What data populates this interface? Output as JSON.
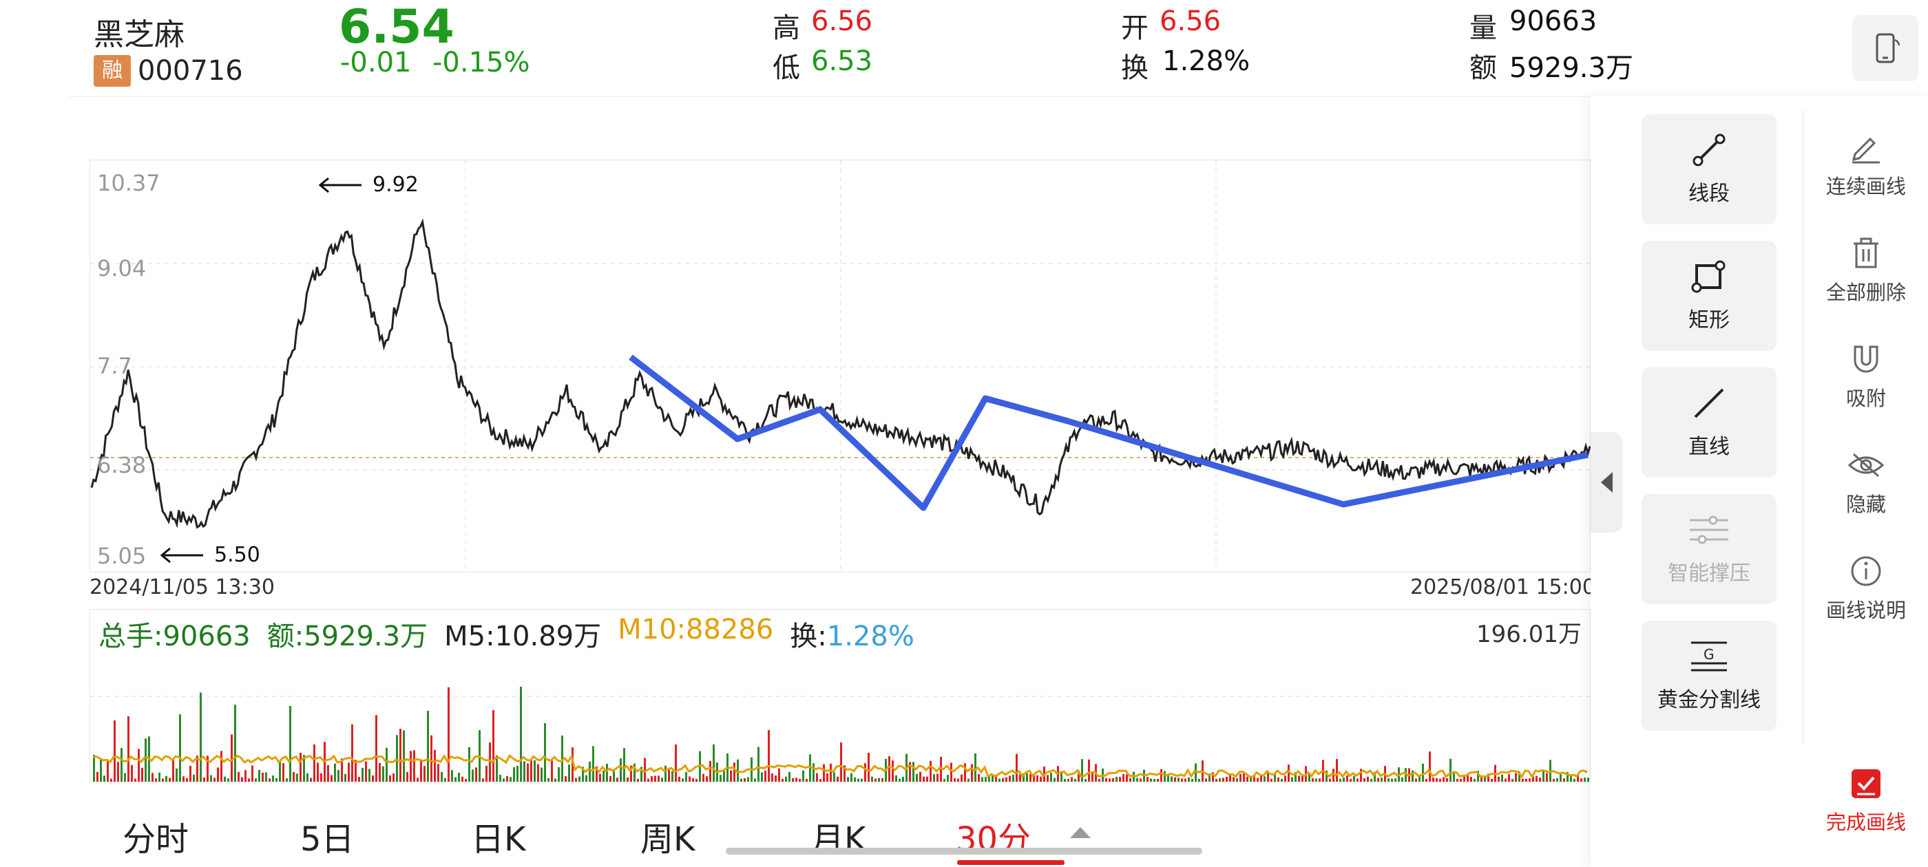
{
  "stock": {
    "name": "黑芝麻",
    "badge": "融",
    "code": "000716",
    "price": "6.54",
    "change": "-0.01",
    "change_pct": "-0.15%"
  },
  "quote": {
    "high_label": "高",
    "high": "6.56",
    "low_label": "低",
    "low": "6.53",
    "open_label": "开",
    "open": "6.56",
    "turnover_label": "换",
    "turnover": "1.28%",
    "volume_label": "量",
    "volume": "90663",
    "amount_label": "额",
    "amount": "5929.3万"
  },
  "chart": {
    "y_labels": [
      "10.37",
      "9.04",
      "7.7",
      "6.38",
      "5.05"
    ],
    "max_annotation": "9.92",
    "min_annotation": "5.50",
    "start_date": "2024/11/05 13:30",
    "end_date": "2025/08/01 15:00"
  },
  "volume_legend": {
    "total": "总手:90663",
    "amount": "额:5929.3万",
    "m5": "M5:10.89万",
    "m10": "M10:88286",
    "turn_label": "换:",
    "turn": "1.28%",
    "max_label": "196.01万"
  },
  "tabs": [
    {
      "label": "分时"
    },
    {
      "label": "5日"
    },
    {
      "label": "日K"
    },
    {
      "label": "周K"
    },
    {
      "label": "月K"
    },
    {
      "label": "30分"
    }
  ],
  "tools": {
    "segment": "线段",
    "rectangle": "矩形",
    "line": "直线",
    "smart": "智能撑压",
    "golden": "黄金分割线"
  },
  "side_actions": {
    "continuous": "连续画线",
    "delete_all": "全部删除",
    "snap": "吸附",
    "hide": "隐藏",
    "help": "画线说明",
    "done": "完成画线"
  },
  "colors": {
    "up": "#e02020",
    "down": "#1f9a1f",
    "drawn_line": "#3b5fe0",
    "ma10": "#e0a000",
    "turn": "#3aa0d8"
  },
  "chart_data": {
    "type": "line",
    "title": "",
    "x_range": [
      "2024/11/05 13:30",
      "2025/08/01 15:00"
    ],
    "ylim": [
      5.05,
      10.37
    ],
    "y_ticks": [
      10.37,
      9.04,
      7.7,
      6.38,
      5.05
    ],
    "series": [
      {
        "values": [
          6.0,
          7.7,
          5.6,
          5.5,
          6.1,
          7.0,
          9.0,
          9.8,
          8.0,
          9.9,
          7.6,
          6.8,
          6.6,
          7.4,
          6.5,
          7.6,
          6.8,
          7.4,
          6.8,
          7.3,
          7.2,
          6.9,
          6.8,
          6.7,
          6.5,
          6.2,
          5.7,
          6.9,
          7.0,
          6.5,
          6.4,
          6.45,
          6.5,
          6.6,
          6.4,
          6.3,
          6.2,
          6.3,
          6.25,
          6.3,
          6.35,
          6.6
        ]
      }
    ]
  }
}
